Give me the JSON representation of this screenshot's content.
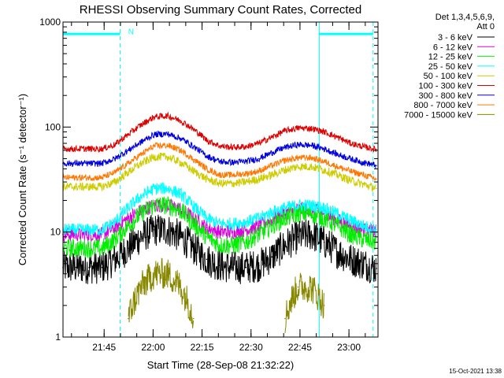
{
  "chart_data": {
    "type": "line",
    "title": "RHESSI Observing Summary Count Rates, Corrected",
    "xlabel": "Start Time (28-Sep-08 21:32:22)",
    "ylabel": "Corrected Count Rate (s⁻¹ detector⁻¹)",
    "y_scale": "log",
    "ylim": [
      1,
      1000
    ],
    "y_ticks": [
      1,
      10,
      100,
      1000
    ],
    "y_tick_labels": [
      "1",
      "10",
      "100",
      "1000"
    ],
    "xlim_minutes_after_start": [
      0,
      96.5
    ],
    "x_ticks": [
      {
        "t": 12.6,
        "label": "21:45"
      },
      {
        "t": 27.6,
        "label": "22:00"
      },
      {
        "t": 42.6,
        "label": "22:15"
      },
      {
        "t": 57.6,
        "label": "22:30"
      },
      {
        "t": 72.6,
        "label": "22:45"
      },
      {
        "t": 87.6,
        "label": "23:00"
      }
    ],
    "x_minor_step_minutes": 5,
    "legend_placement": "outside-right",
    "legend_header": [
      "Det 1,3,4,5,6,9,",
      "Att 0"
    ],
    "x_sample_minutes": [
      0,
      4,
      8,
      12,
      16,
      20,
      24,
      28,
      32,
      36,
      40,
      44,
      48,
      52,
      56,
      60,
      64,
      68,
      72,
      76,
      80,
      84,
      88,
      92,
      96
    ],
    "series": [
      {
        "name": "3 - 6 keV",
        "color": "#000000",
        "values": [
          4.6,
          4.6,
          4.6,
          4.6,
          5.5,
          7,
          9,
          10.5,
          10.5,
          9,
          7,
          5.5,
          4.8,
          4.6,
          4.6,
          4.8,
          5.8,
          7.5,
          9,
          9.5,
          8,
          6.5,
          5.5,
          5,
          4.5
        ]
      },
      {
        "name": "6 - 12 keV",
        "color": "#dd00dd",
        "values": [
          9.5,
          9.5,
          9.5,
          9.5,
          11,
          13.5,
          16,
          18,
          18,
          16.5,
          13.5,
          11,
          10,
          10,
          10.5,
          11.5,
          13,
          15,
          16.5,
          16.5,
          15,
          13,
          11.5,
          10.5,
          10
        ]
      },
      {
        "name": "12 - 25 keV",
        "color": "#00ee00",
        "values": [
          7,
          7,
          7,
          7,
          8.5,
          11.5,
          15,
          18,
          18,
          16,
          12,
          9,
          7.5,
          7.5,
          8,
          9.5,
          11.5,
          13.5,
          15,
          15,
          13.5,
          11.5,
          9.5,
          8.5,
          8
        ]
      },
      {
        "name": "25 - 50 keV",
        "color": "#00ffff",
        "values": [
          10.5,
          10.5,
          10.5,
          10.5,
          12.5,
          17,
          22,
          26,
          26,
          23,
          17.5,
          13.5,
          12,
          12,
          12.5,
          13.5,
          15.5,
          17,
          18,
          18,
          17,
          15,
          13,
          11.5,
          10.5
        ]
      },
      {
        "name": "50 - 100 keV",
        "color": "#cccc00",
        "values": [
          27,
          27,
          27,
          27,
          30,
          37,
          45,
          52,
          52,
          46,
          38,
          32,
          29,
          29,
          30,
          32,
          35,
          39,
          42,
          42,
          39,
          35,
          31,
          28.5,
          26
        ]
      },
      {
        "name": "100 - 300 keV",
        "color": "#dd0000",
        "values": [
          62,
          62,
          62,
          62,
          68,
          85,
          105,
          125,
          128,
          115,
          95,
          75,
          66,
          64,
          65,
          70,
          80,
          92,
          98,
          97,
          90,
          80,
          70,
          65,
          61
        ]
      },
      {
        "name": "300 - 800 keV",
        "color": "#0000dd",
        "values": [
          45,
          45,
          45,
          45,
          50,
          60,
          72,
          85,
          86,
          78,
          65,
          53,
          47,
          46,
          47,
          50,
          57,
          64,
          68,
          67,
          62,
          55,
          50,
          46,
          43
        ]
      },
      {
        "name": "800 - 7000 keV",
        "color": "#ff7700",
        "values": [
          33,
          33,
          33,
          33,
          37,
          45,
          55,
          66,
          67,
          60,
          49,
          40,
          35,
          35,
          36,
          38,
          43,
          48,
          51,
          51,
          47,
          42,
          38,
          35,
          32
        ]
      },
      {
        "name": "7000 - 15000 keV",
        "color": "#888800",
        "values": [
          null,
          null,
          null,
          null,
          null,
          1.5,
          3,
          4,
          4,
          3,
          1.5,
          null,
          null,
          null,
          null,
          null,
          null,
          1.5,
          3,
          3,
          2,
          null,
          null,
          null,
          null
        ]
      }
    ],
    "annotations": [
      {
        "type": "flag_bar",
        "label": "",
        "t_from": 0,
        "t_to": 17.5,
        "level": 770,
        "color": "#00ffff"
      },
      {
        "type": "flag_bar",
        "label": "",
        "t_from": 78.5,
        "t_to": 95,
        "level": 770,
        "color": "#00ffff"
      },
      {
        "type": "marker_label",
        "label": "N",
        "t": 19,
        "level": 820,
        "color": "#00ffff"
      }
    ],
    "vertical_lines": [
      {
        "t": 0,
        "style": "solid"
      },
      {
        "t": 17.5,
        "style": "dashed"
      },
      {
        "t": 78.5,
        "style": "solid"
      },
      {
        "t": 95,
        "style": "dashed"
      }
    ]
  },
  "footer": {
    "timestamp": "15-Oct-2021 13:38"
  }
}
